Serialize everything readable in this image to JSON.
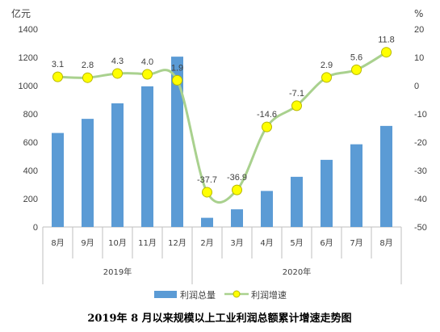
{
  "chart_data": {
    "type": "bar+line",
    "title": "2019年 8 月以来规模以上工业利润总额累计增速走势图",
    "left_axis_unit": "亿元",
    "right_axis_unit": "%",
    "left_axis": {
      "min": 0,
      "max": 1400,
      "step": 200,
      "ticks": [
        "0",
        "200",
        "400",
        "600",
        "800",
        "1000",
        "1200",
        "1400"
      ]
    },
    "right_axis": {
      "min": -50,
      "max": 20,
      "step": 10,
      "ticks": [
        "-50",
        "-40",
        "-30",
        "-20",
        "-10",
        "0",
        "10",
        "20"
      ]
    },
    "categories": [
      "8月",
      "9月",
      "10月",
      "11月",
      "12月",
      "2月",
      "3月",
      "4月",
      "5月",
      "6月",
      "7月",
      "8月"
    ],
    "year_groups": [
      {
        "label": "2019年",
        "start": 0,
        "end": 4
      },
      {
        "label": "2020年",
        "start": 5,
        "end": 11
      }
    ],
    "series": [
      {
        "name": "利润总量",
        "type": "bar",
        "axis": "left",
        "color": "#5b9bd5",
        "values": [
          665,
          765,
          875,
          995,
          1205,
          65,
          125,
          255,
          355,
          475,
          585,
          715
        ]
      },
      {
        "name": "利润增速",
        "type": "line",
        "axis": "right",
        "color": "#a9d18e",
        "marker_color": "#ffff00",
        "marker_edge": "#b8b800",
        "values": [
          3.1,
          2.8,
          4.3,
          4.0,
          1.9,
          -37.7,
          -36.9,
          -14.6,
          -7.1,
          2.9,
          5.6,
          11.8
        ],
        "labels": [
          "3.1",
          "2.8",
          "4.3",
          "4.0",
          "1.9",
          "-37.7",
          "-36.9",
          "-14.6",
          "-7.1",
          "2.9",
          "5.6",
          "11.8"
        ]
      }
    ],
    "legend_position": "bottom",
    "grid": false
  }
}
